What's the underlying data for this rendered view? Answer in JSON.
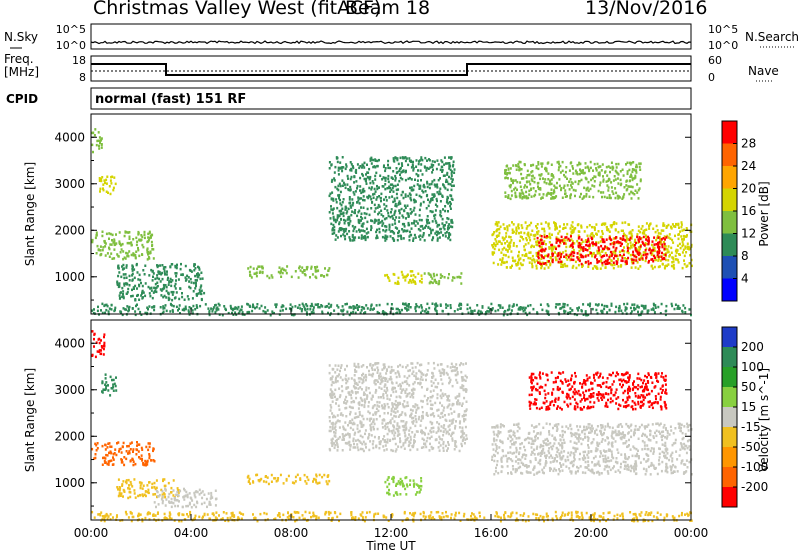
{
  "header": {
    "title": "Christmas Valley West (fitACF)",
    "beam": "Beam 18",
    "date": "13/Nov/2016"
  },
  "panels": {
    "nsky_label": "N.Sky",
    "nsearch_label": "N.Search",
    "freq_label_1": "Freq.",
    "freq_label_2": "[MHz]",
    "nave_label": "Nave",
    "cpid_label": "CPID",
    "radar_mode": "normal (fast) 151 RF",
    "noise_ticks_left": [
      "10^5",
      "10^0"
    ],
    "noise_ticks_right": [
      "10^5",
      "10^0"
    ],
    "freq_ticks": [
      "18",
      "8"
    ],
    "nave_ticks": [
      "60",
      "0"
    ]
  },
  "colors": {
    "axis": "#000000",
    "power_scale": [
      "#0000ff",
      "#1e50b4",
      "#2e8b57",
      "#7fbf3f",
      "#d4d400",
      "#ffa500",
      "#ff6400",
      "#ff0000"
    ],
    "velocity_scale": [
      "#1e3cc8",
      "#2e8b57",
      "#28a028",
      "#88d040",
      "#c8c8c0",
      "#f0c020",
      "#ff9600",
      "#ff6400",
      "#ff0000"
    ]
  },
  "chart_data": [
    {
      "type": "heatmap",
      "name": "power",
      "ylabel": "Slant Range [km]",
      "yticks": [
        "4000",
        "3000",
        "2000",
        "1000"
      ],
      "ylim": [
        200,
        4500
      ],
      "xlim": [
        "00:00",
        "24:00"
      ],
      "colorbar_label": "Power [dB]",
      "colorbar_ticks": [
        "28",
        "24",
        "20",
        "16",
        "12",
        "8",
        "4"
      ],
      "colorbar_range": [
        0,
        30
      ],
      "echo_regions": [
        {
          "t": [
            0.0,
            0.4
          ],
          "r": [
            3700,
            4200
          ],
          "value": 14
        },
        {
          "t": [
            0.3,
            1.0
          ],
          "r": [
            2800,
            3200
          ],
          "value": 18
        },
        {
          "t": [
            0.0,
            2.5
          ],
          "r": [
            1400,
            2000
          ],
          "value": 14
        },
        {
          "t": [
            1.0,
            4.5
          ],
          "r": [
            500,
            1300
          ],
          "value": 10
        },
        {
          "t": [
            6.2,
            9.5
          ],
          "r": [
            1000,
            1250
          ],
          "value": 13
        },
        {
          "t": [
            11.7,
            13.2
          ],
          "r": [
            850,
            1150
          ],
          "value": 15
        },
        {
          "t": [
            13.3,
            14.8
          ],
          "r": [
            850,
            1100
          ],
          "value": 12
        },
        {
          "t": [
            9.5,
            14.5
          ],
          "r": [
            1800,
            3600
          ],
          "value": 8
        },
        {
          "t": [
            16.0,
            24.0
          ],
          "r": [
            1200,
            2200
          ],
          "value": 16
        },
        {
          "t": [
            17.8,
            23.0
          ],
          "r": [
            1300,
            1900
          ],
          "value": 28
        },
        {
          "t": [
            16.5,
            22.0
          ],
          "r": [
            2700,
            3500
          ],
          "value": 14
        },
        {
          "t": [
            0.0,
            24.0
          ],
          "r": [
            200,
            450
          ],
          "value": 8
        }
      ]
    },
    {
      "type": "heatmap",
      "name": "velocity",
      "ylabel": "Slant Range [km]",
      "xlabel": "Time UT",
      "xticks": [
        "00:00",
        "04:00",
        "08:00",
        "12:00",
        "16:00",
        "20:00",
        "00:00"
      ],
      "yticks": [
        "4000",
        "3000",
        "2000",
        "1000"
      ],
      "ylim": [
        200,
        4500
      ],
      "xlim": [
        "00:00",
        "24:00"
      ],
      "colorbar_label": "Velocity [m s^-1]",
      "colorbar_ticks": [
        "200",
        "100",
        "50",
        "15",
        "-15",
        "-50",
        "-100",
        "-200"
      ],
      "colorbar_range": [
        -250,
        250
      ],
      "echo_regions": [
        {
          "t": [
            0.0,
            0.5
          ],
          "r": [
            3700,
            4300
          ],
          "value": -200
        },
        {
          "t": [
            0.4,
            1.0
          ],
          "r": [
            2900,
            3400
          ],
          "value": 150
        },
        {
          "t": [
            0.0,
            2.5
          ],
          "r": [
            1400,
            1900
          ],
          "value": -150
        },
        {
          "t": [
            1.0,
            3.5
          ],
          "r": [
            700,
            1100
          ],
          "value": -60
        },
        {
          "t": [
            2.5,
            5.0
          ],
          "r": [
            500,
            900
          ],
          "value": 0
        },
        {
          "t": [
            6.2,
            9.5
          ],
          "r": [
            1000,
            1200
          ],
          "value": -40
        },
        {
          "t": [
            11.7,
            13.2
          ],
          "r": [
            750,
            1150
          ],
          "value": 60
        },
        {
          "t": [
            9.5,
            15.0
          ],
          "r": [
            1700,
            3600
          ],
          "value": 0
        },
        {
          "t": [
            16.0,
            24.0
          ],
          "r": [
            1200,
            2300
          ],
          "value": 0
        },
        {
          "t": [
            17.5,
            23.0
          ],
          "r": [
            2600,
            3400
          ],
          "value": -200
        },
        {
          "t": [
            0.0,
            24.0
          ],
          "r": [
            200,
            400
          ],
          "value": -40
        }
      ]
    }
  ]
}
